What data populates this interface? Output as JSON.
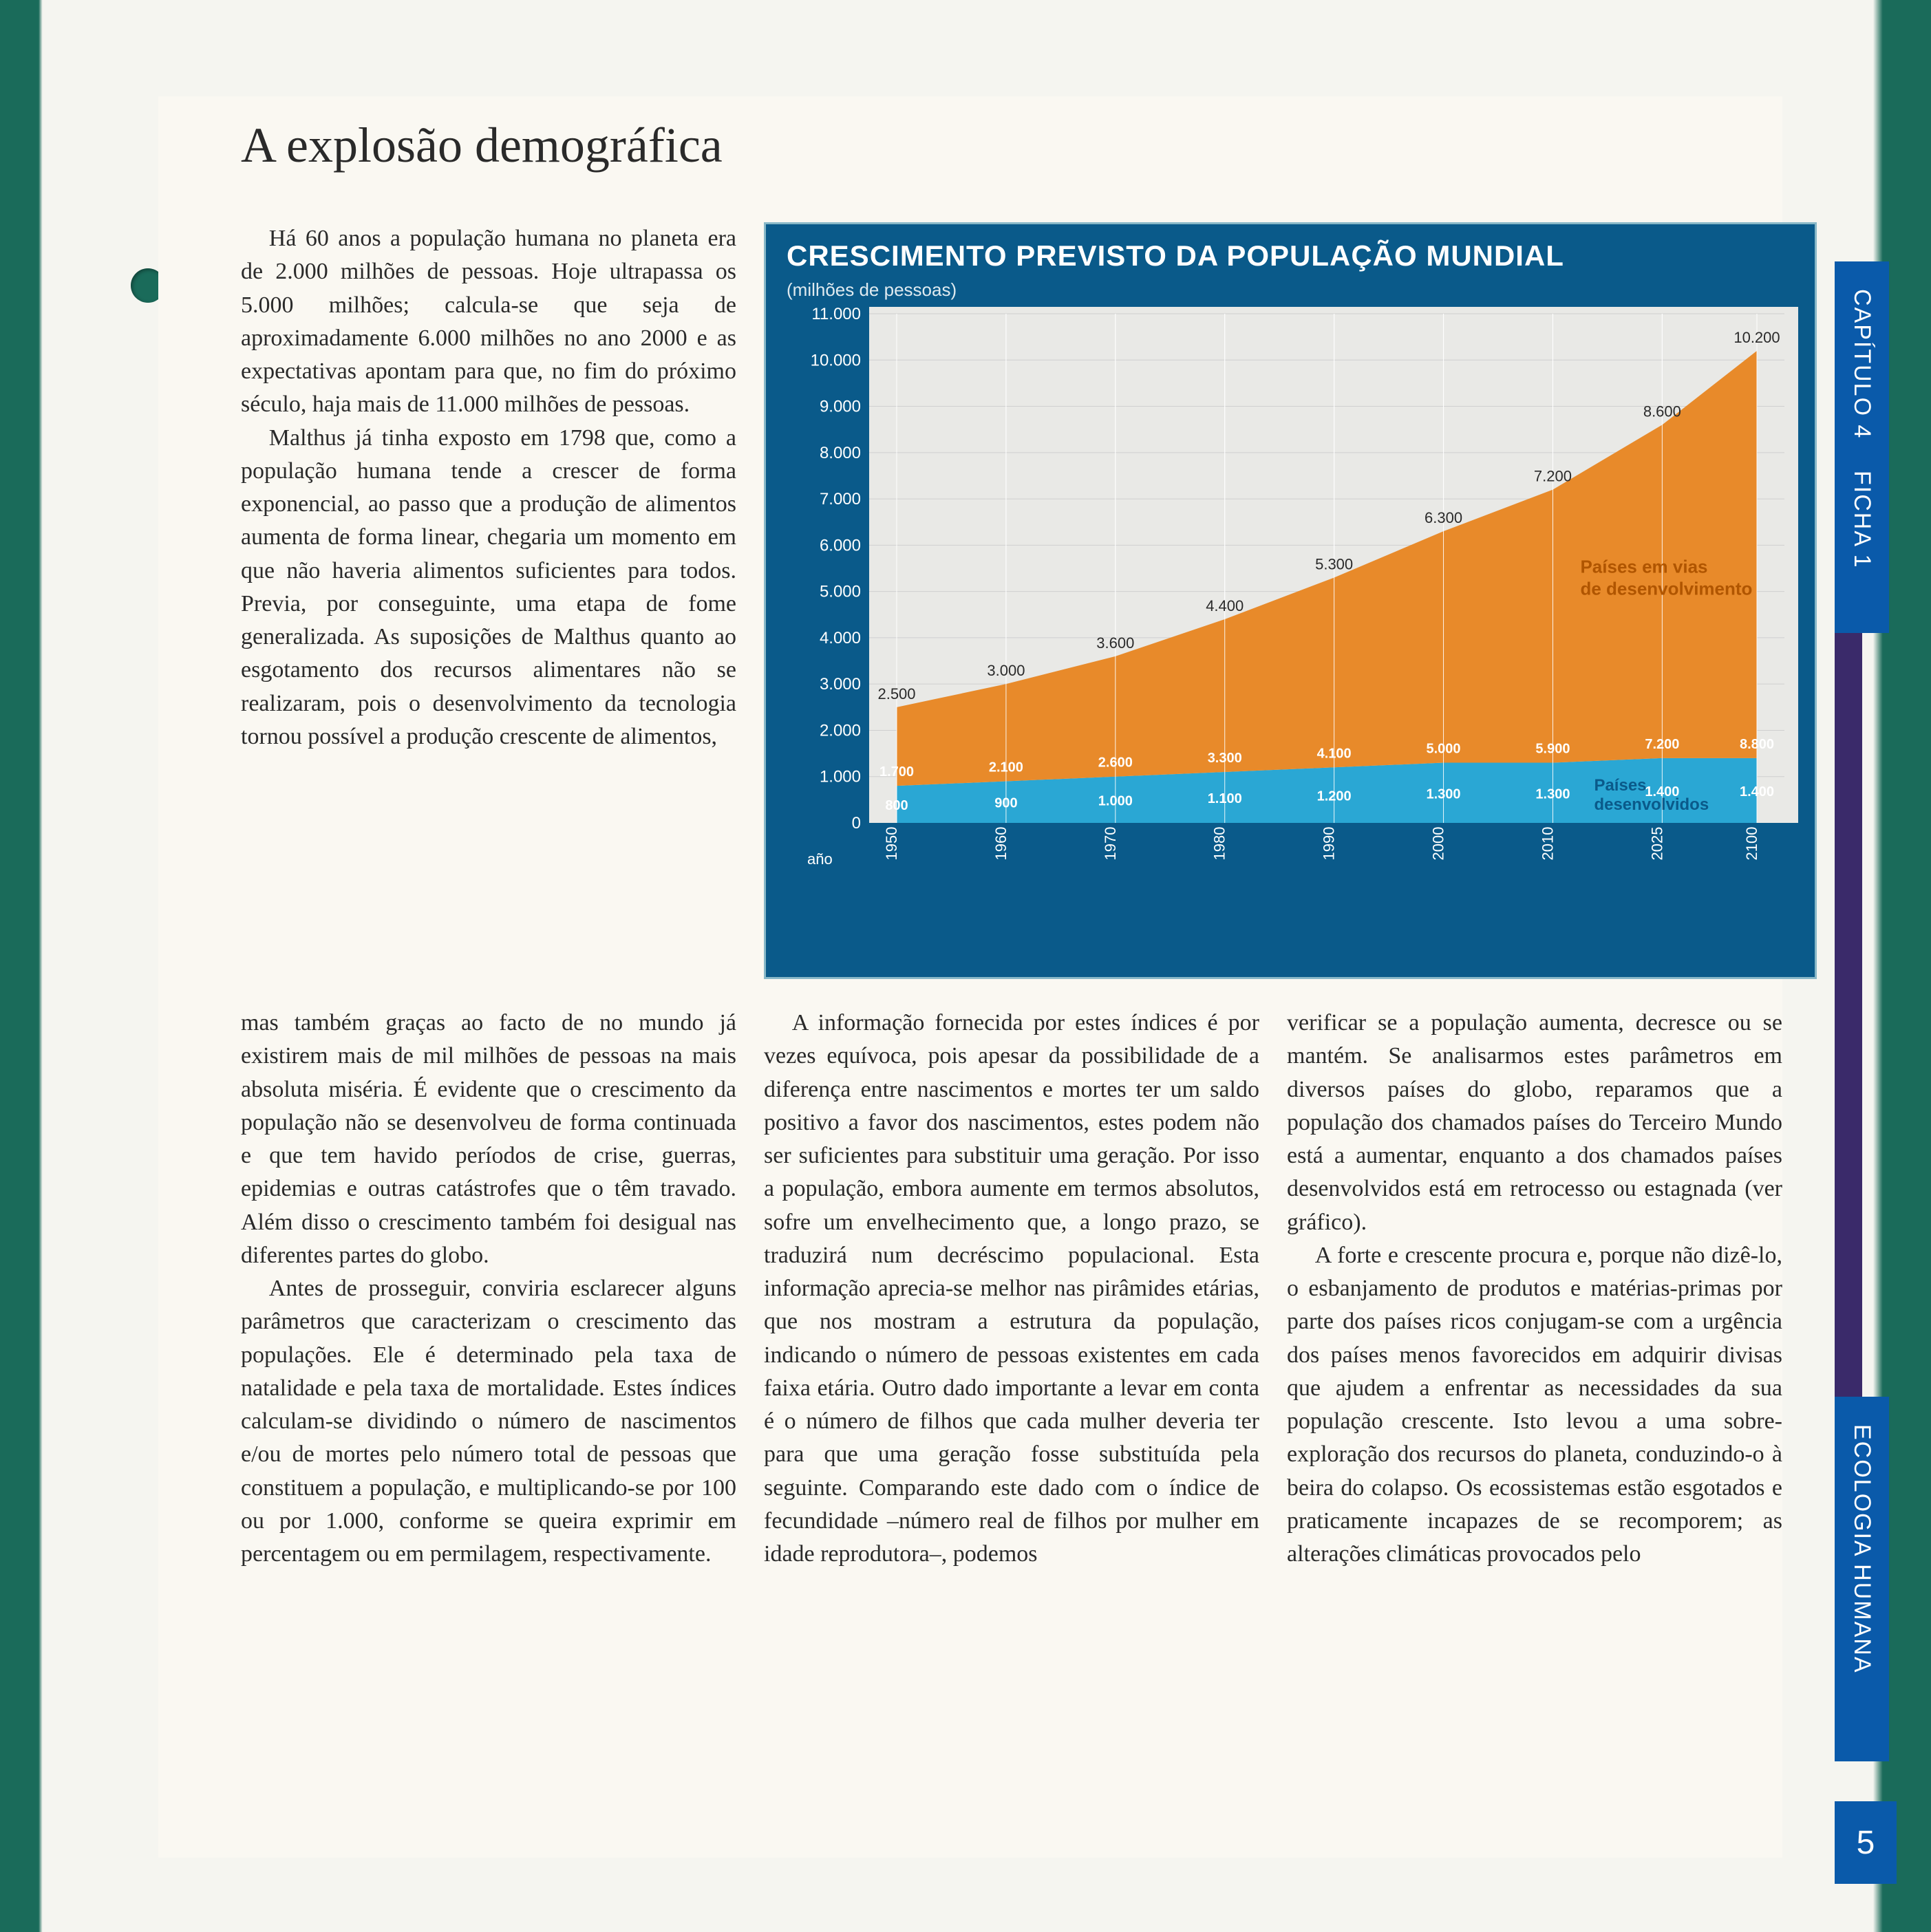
{
  "page": {
    "title": "A explosão demográfica",
    "number": "5"
  },
  "tabs": {
    "capitulo": "CAPÍTULO 4",
    "ficha": "FICHA 1",
    "seccao": "ECOLOGIA HUMANA"
  },
  "paragraphs": {
    "p1": "Há 60 anos a população humana no planeta era de 2.000 milhões de pessoas. Hoje ultrapassa os 5.000 milhões; calcula-se que seja de aproximadamente 6.000 milhões no ano 2000 e as expectativas apontam para que, no fim do próximo século, haja mais de 11.000 milhões de pessoas.",
    "p2": "Malthus já tinha exposto em 1798 que, como a população humana tende a crescer de forma exponencial, ao passo que a produção de alimentos aumenta de forma linear, chegaria um momento em que não haveria alimentos suficientes para todos. Previa, por conseguinte, uma etapa de fome generalizada. As suposições de Malthus quanto ao esgotamento dos recursos alimentares não se realizaram, pois o desenvolvimento da tecnologia tornou possível a produção crescente de alimentos, mas também graças ao facto de no mundo já existirem mais de mil milhões de pessoas na mais absoluta miséria. É evidente que o crescimento da população não se desenvolveu de forma continuada e que tem havido períodos de crise, guerras, epidemias e outras catástrofes que o têm travado. Além disso o crescimento também foi desigual nas diferentes partes do globo.",
    "p3": "Antes de prosseguir, conviria esclarecer alguns parâmetros que caracterizam o crescimento das populações. Ele é determinado pela taxa de natalidade e pela taxa de mortalidade. Estes índices calculam-se dividindo o número de nascimentos e/ou de mortes pelo número total de pessoas que constituem a população, e multiplicando-se por 100 ou por 1.000, conforme se queira exprimir em percentagem ou em permilagem, respectivamente.",
    "p4": "A informação fornecida por estes índices é por vezes equívoca, pois apesar da possibilidade de a diferença entre nascimentos e mortes ter um saldo positivo a favor dos nascimentos, estes podem não ser suficientes para substituir uma geração. Por isso a população, embora aumente em termos absolutos, sofre um envelhecimento que, a longo prazo, se traduzirá num decréscimo populacional. Esta informação aprecia-se melhor nas pirâmides etárias, que nos mostram a estrutura da população, indicando o número de pessoas existentes em cada faixa etária. Outro dado importante a levar em conta é o número de filhos que cada mulher deveria ter para que uma geração fosse substituída pela seguinte. Comparando este dado com o índice de fecundidade –número real de filhos por mulher em idade reprodutora–, podemos",
    "p5": "verificar se a população aumenta, decresce ou se mantém. Se analisarmos estes parâmetros em diversos países do globo, reparamos que a população dos chamados países do Terceiro Mundo está a aumentar, enquanto a dos chamados países desenvolvidos está em retrocesso ou estagnada (ver gráfico).",
    "p6": "A forte e crescente procura e, porque não dizê-lo, o esbanjamento de produtos e matérias-primas por parte dos países ricos conjugam-se com a urgência dos países menos favorecidos em adquirir divisas que ajudem a enfrentar as necessidades da sua população crescente. Isto levou a uma sobre-exploração dos recursos do planeta, conduzindo-o à beira do colapso. Os ecossistemas estão esgotados e praticamente incapazes de se recomporem; as alterações climáticas provocados pelo"
  },
  "chart": {
    "type": "stacked-area",
    "title": "CRESCIMENTO PREVISTO DA POPULAÇÃO MUNDIAL",
    "subtitle": "(milhões de pessoas)",
    "x_axis_label": "año",
    "background_color": "#0a5a8a",
    "plot_bg_color": "#e9e9e6",
    "grid_color_v": "#ffffff",
    "grid_color_h": "#cfcfcf",
    "ylim": [
      0,
      11000
    ],
    "ytick_step": 1000,
    "y_ticks": [
      "0",
      "1.000",
      "2.000",
      "3.000",
      "4.000",
      "5.000",
      "6.000",
      "7.000",
      "8.000",
      "9.000",
      "10.000",
      "11.000"
    ],
    "x_ticks": [
      "1950",
      "1960",
      "1970",
      "1980",
      "1990",
      "2000",
      "2010",
      "2025",
      "2100"
    ],
    "series": [
      {
        "name": "Países desenvolvidos",
        "color": "#2aa7d4",
        "label_color": "#0a5a8a",
        "values": [
          800,
          900,
          1000,
          1100,
          1200,
          1300,
          1300,
          1400,
          1400
        ],
        "value_labels": [
          "800",
          "900",
          "1.000",
          "1.100",
          "1.200",
          "1.300",
          "1.300",
          "1.400",
          "1.400"
        ]
      },
      {
        "name": "Países em vias de desenvolvimento",
        "color": "#e88a2a",
        "label_color": "#b05500",
        "values": [
          1700,
          2100,
          2600,
          3300,
          4100,
          5000,
          5900,
          7200,
          8800
        ],
        "value_labels": [
          "1.700",
          "2.100",
          "2.600",
          "3.300",
          "4.100",
          "5.000",
          "5.900",
          "7.200",
          "8.800"
        ]
      }
    ],
    "totals": [
      2500,
      3000,
      3600,
      4400,
      5300,
      6300,
      7200,
      8600,
      10200
    ],
    "total_labels": [
      "2.500",
      "3.000",
      "3.600",
      "4.400",
      "5.300",
      "6.300",
      "7.200",
      "8.600",
      "10.200"
    ],
    "fonts": {
      "title_fontsize": 42,
      "axis_fontsize": 24,
      "value_fontsize": 20,
      "region_fontsize": 26
    }
  }
}
